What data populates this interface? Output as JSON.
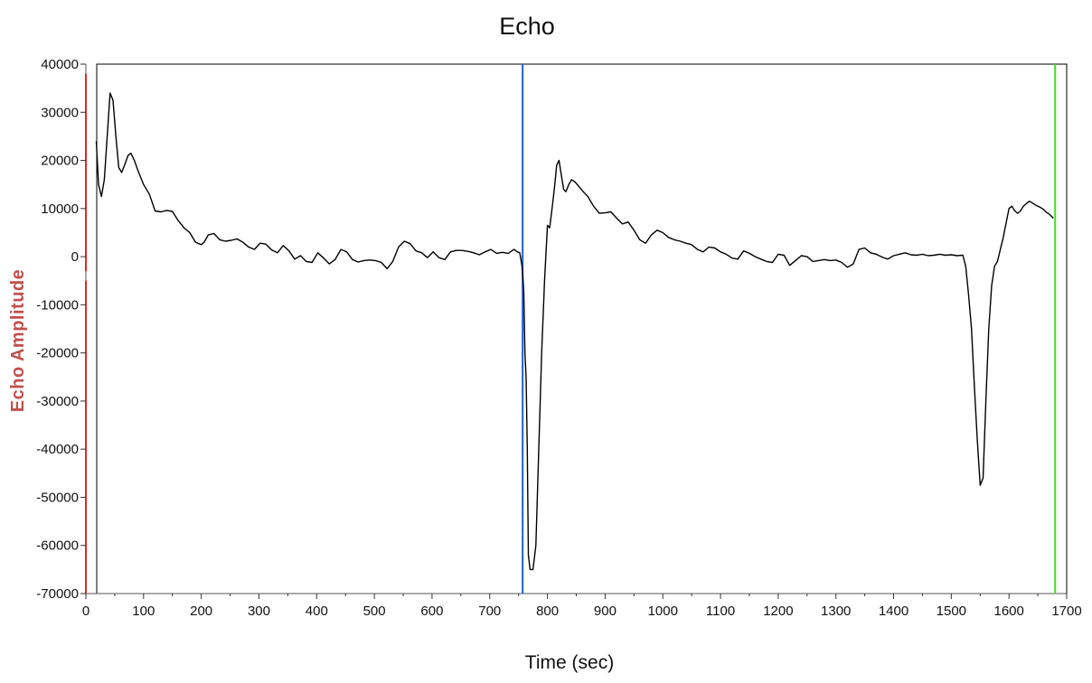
{
  "chart_data": {
    "type": "line",
    "title": "Echo",
    "xlabel": "Time (sec)",
    "ylabel": "Echo Amplitude",
    "xlim": [
      0,
      1700
    ],
    "ylim": [
      -70000,
      40000
    ],
    "x_ticks": [
      0,
      100,
      200,
      300,
      400,
      500,
      600,
      700,
      800,
      900,
      1000,
      1100,
      1200,
      1300,
      1400,
      1500,
      1600,
      1700
    ],
    "y_ticks": [
      40000,
      30000,
      20000,
      10000,
      0,
      -10000,
      -20000,
      -30000,
      -40000,
      -50000,
      -60000,
      -70000
    ],
    "grid": false,
    "series": [
      {
        "color": "#000000",
        "x": [
          18,
          22,
          27,
          32,
          38,
          42,
          47,
          52,
          57,
          62,
          67,
          73,
          78,
          84,
          90,
          100,
          110,
          120,
          130,
          140,
          150,
          160,
          170,
          180,
          190,
          200,
          205,
          212,
          222,
          232,
          242,
          252,
          262,
          272,
          282,
          292,
          302,
          312,
          322,
          332,
          342,
          352,
          362,
          372,
          382,
          392,
          402,
          412,
          422,
          432,
          442,
          452,
          462,
          472,
          482,
          492,
          502,
          512,
          522,
          532,
          542,
          552,
          562,
          572,
          582,
          592,
          602,
          612,
          622,
          632,
          642,
          652,
          662,
          672,
          682,
          692,
          702,
          712,
          722,
          732,
          742,
          748,
          752,
          756,
          759,
          761,
          763,
          765,
          767,
          770,
          775,
          780,
          785,
          790,
          795,
          800,
          804,
          808,
          812,
          816,
          820,
          824,
          828,
          832,
          837,
          842,
          848,
          855,
          862,
          870,
          880,
          890,
          900,
          910,
          920,
          930,
          940,
          950,
          960,
          970,
          980,
          990,
          1000,
          1010,
          1020,
          1030,
          1040,
          1050,
          1060,
          1070,
          1080,
          1090,
          1100,
          1110,
          1120,
          1130,
          1140,
          1150,
          1160,
          1170,
          1180,
          1190,
          1200,
          1210,
          1220,
          1230,
          1240,
          1250,
          1260,
          1270,
          1280,
          1290,
          1300,
          1310,
          1320,
          1330,
          1340,
          1350,
          1360,
          1370,
          1380,
          1390,
          1400,
          1410,
          1420,
          1430,
          1440,
          1450,
          1460,
          1470,
          1480,
          1490,
          1500,
          1510,
          1520,
          1525,
          1530,
          1535,
          1540,
          1545,
          1550,
          1555,
          1560,
          1565,
          1570,
          1575,
          1580,
          1585,
          1590,
          1595,
          1600,
          1605,
          1610,
          1615,
          1620,
          1625,
          1630,
          1635,
          1640,
          1645,
          1650,
          1655,
          1660,
          1665,
          1670,
          1677
        ],
        "y": [
          24000,
          15000,
          12500,
          16000,
          27000,
          34000,
          32500,
          25000,
          18500,
          17500,
          19000,
          21000,
          21500,
          20000,
          18000,
          15000,
          13000,
          9500,
          9300,
          9600,
          9400,
          7500,
          6000,
          5000,
          3000,
          2500,
          3000,
          4500,
          4800,
          3500,
          3200,
          3400,
          3700,
          3000,
          2000,
          1500,
          2800,
          2600,
          1400,
          800,
          2300,
          1200,
          -500,
          200,
          -1000,
          -1200,
          800,
          -300,
          -1500,
          -600,
          1500,
          1000,
          -600,
          -1100,
          -800,
          -700,
          -800,
          -1200,
          -2500,
          -1000,
          2000,
          3200,
          2700,
          1200,
          800,
          -200,
          1000,
          -200,
          -600,
          1000,
          1300,
          1300,
          1100,
          800,
          400,
          1000,
          1500,
          700,
          900,
          700,
          1500,
          1000,
          800,
          -2000,
          -7000,
          -20000,
          -25000,
          -40000,
          -62000,
          -65000,
          -65000,
          -60000,
          -40000,
          -20000,
          -5000,
          6500,
          6000,
          10000,
          14000,
          19000,
          20000,
          17000,
          14000,
          13500,
          15000,
          16000,
          15500,
          14500,
          13500,
          12500,
          10500,
          9000,
          9100,
          9300,
          8000,
          6800,
          7200,
          5500,
          3500,
          2800,
          4500,
          5500,
          5000,
          4000,
          3500,
          3200,
          2800,
          2500,
          1500,
          1000,
          2000,
          1800,
          1000,
          500,
          -300,
          -500,
          1200,
          700,
          0,
          -500,
          -1000,
          -1200,
          500,
          300,
          -1800,
          -800,
          200,
          0,
          -1000,
          -800,
          -600,
          -800,
          -700,
          -1200,
          -2200,
          -1500,
          1500,
          1800,
          800,
          500,
          -100,
          -500,
          200,
          500,
          800,
          400,
          300,
          500,
          200,
          300,
          500,
          300,
          400,
          200,
          300,
          -2000,
          -8000,
          -15000,
          -27000,
          -38000,
          -47500,
          -46000,
          -30000,
          -15000,
          -6000,
          -2000,
          -1000,
          1500,
          4000,
          7000,
          10000,
          10500,
          9500,
          9000,
          9500,
          10500,
          11000,
          11500,
          11200,
          10800,
          10500,
          10200,
          9800,
          9200,
          8800,
          8000
        ]
      }
    ],
    "cursor_lines": [
      {
        "x": 757,
        "color": "#1f5fe0"
      },
      {
        "x": 1680,
        "color": "#44dd22"
      }
    ],
    "plot_border_color": "#000000",
    "left_axis_accent": "#e0282a"
  }
}
